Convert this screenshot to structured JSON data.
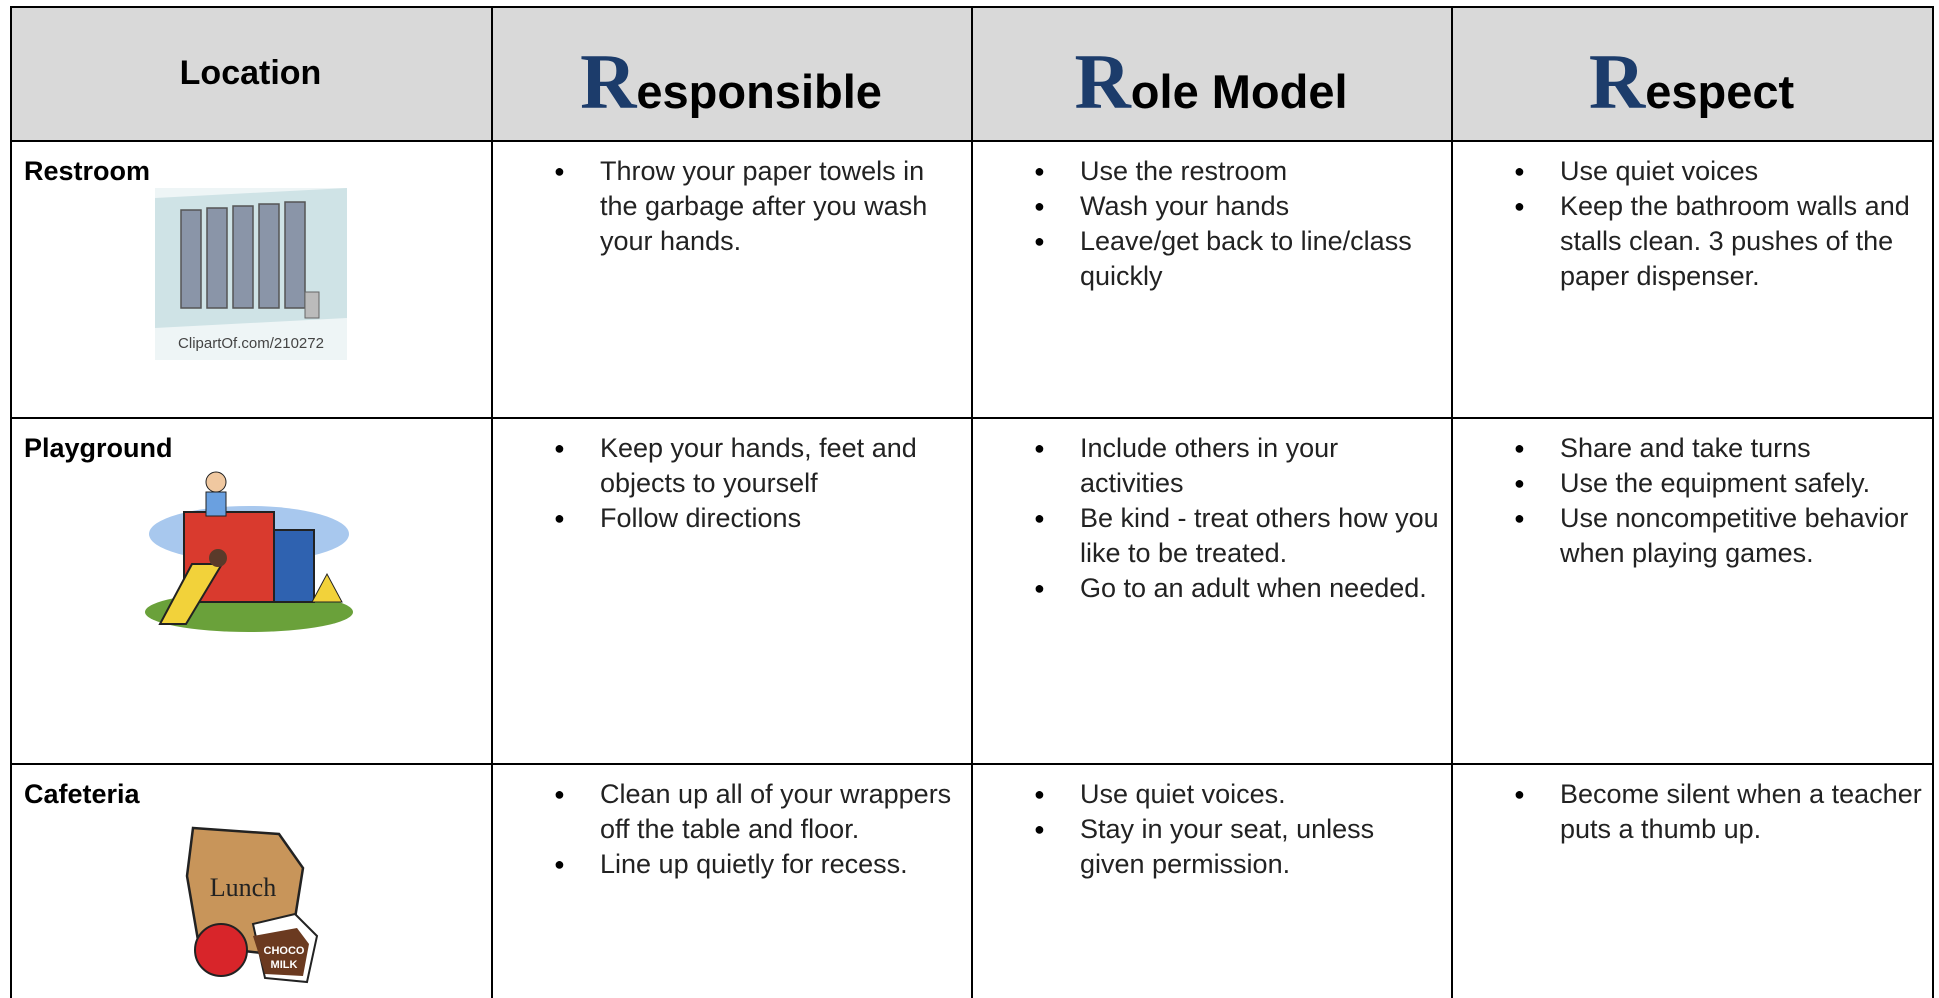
{
  "header": {
    "columns": [
      "Location",
      "Responsible",
      "Role Model",
      "Respect"
    ]
  },
  "rows": [
    {
      "location": "Restroom",
      "image_text": [
        "ClipartOf.com/210272"
      ],
      "items": [
        [
          "Throw your paper towels in the garbage after you wash your hands."
        ],
        [
          "Use the restroom",
          "Wash your hands",
          "Leave/get back to line/class quickly"
        ],
        [
          "Use quiet voices",
          "Keep the bathroom walls and stalls clean.  3 pushes of the paper dispenser."
        ]
      ]
    },
    {
      "location": "Playground",
      "items": [
        [
          "Keep your hands, feet and objects to yourself",
          "Follow directions"
        ],
        [
          "Include others in your activities",
          "Be kind - treat others how you like to be treated.",
          "Go to an adult when needed."
        ],
        [
          "Share and take turns",
          "Use the equipment safely.",
          "Use noncompetitive behavior when playing games."
        ]
      ]
    },
    {
      "location": "Cafeteria",
      "image_text": [
        "Lunch",
        "CHOCO",
        "MILK"
      ],
      "items": [
        [
          "Clean up all of your wrappers off the table and floor.",
          "Line up quietly for recess."
        ],
        [
          "Use quiet voices.",
          "Stay in your seat, unless given permission."
        ],
        [
          "Become silent when a teacher puts a thumb up."
        ]
      ]
    }
  ]
}
